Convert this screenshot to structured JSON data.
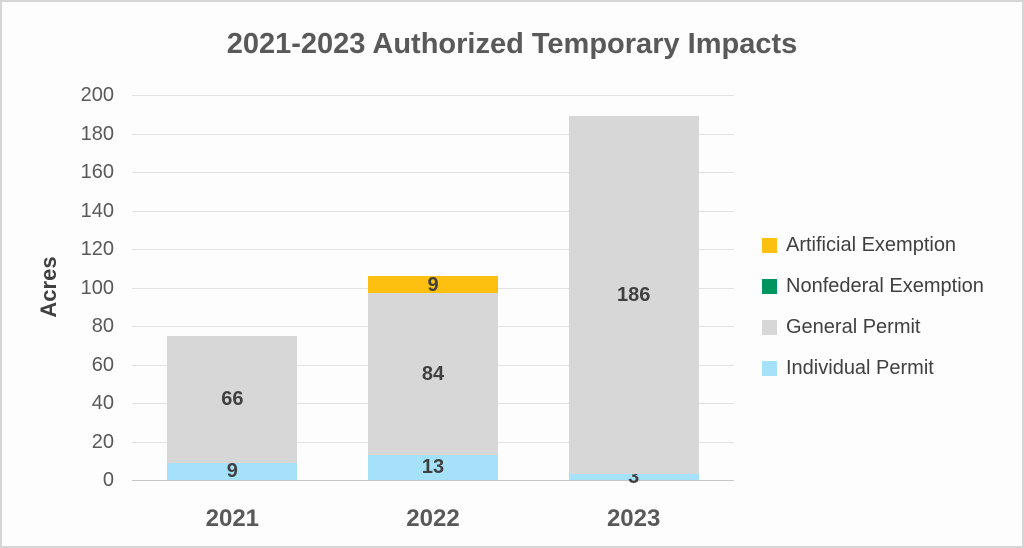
{
  "chart_data": {
    "type": "bar",
    "stacked": true,
    "title": "2021-2023 Authorized Temporary Impacts",
    "ylabel": "Acres",
    "xlabel": "",
    "categories": [
      "2021",
      "2022",
      "2023"
    ],
    "series": [
      {
        "name": "Individual Permit",
        "color": "#A5E1F8",
        "values": [
          9,
          13,
          3
        ]
      },
      {
        "name": "General Permit",
        "color": "#D7D7D7",
        "values": [
          66,
          84,
          186
        ]
      },
      {
        "name": "Nonfederal Exemption",
        "color": "#00945E",
        "values": [
          0,
          0,
          0
        ]
      },
      {
        "name": "Artificial Exemption",
        "color": "#FDC010",
        "values": [
          0,
          9,
          0
        ]
      }
    ],
    "totals": [
      75,
      106,
      189
    ],
    "ylim": [
      0,
      200
    ],
    "ytick_step": 20,
    "ytick_labels": [
      "0",
      "20",
      "40",
      "60",
      "80",
      "100",
      "120",
      "140",
      "160",
      "180",
      "200"
    ],
    "grid": true,
    "legend_position": "right",
    "legend_order_top_to_bottom": [
      "Artificial Exemption",
      "Nonfederal Exemption",
      "General Permit",
      "Individual Permit"
    ]
  },
  "colors": {
    "title_text": "#595959",
    "axis_title_text": "#404040",
    "tick_text": "#595959",
    "data_label_text": "#404040",
    "legend_text": "#404040",
    "gridline": "#E2E2E2",
    "axis_line": "#C6C6C6",
    "background": "#FDFDFD",
    "border": "#D6D6D6"
  }
}
